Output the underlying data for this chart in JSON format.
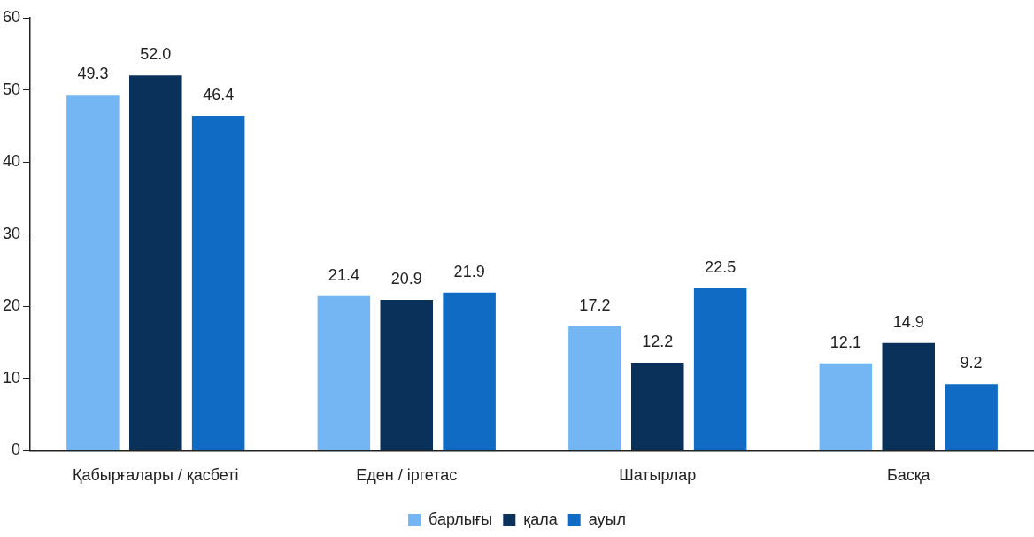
{
  "chart_data": {
    "type": "bar",
    "categories": [
      "Қабырғалары / қасбеті",
      "Еден / іргетас",
      "Шатырлар",
      "Басқа"
    ],
    "series": [
      {
        "name": "барлығы",
        "color": "#74b6f4",
        "values": [
          49.3,
          21.4,
          17.2,
          12.1
        ],
        "value_labels": [
          "49.3",
          "21.4",
          "17.2",
          "12.1"
        ]
      },
      {
        "name": "қала",
        "color": "#0a3159",
        "values": [
          52.0,
          20.9,
          12.2,
          14.9
        ],
        "value_labels": [
          "52.0",
          "20.9",
          "12.2",
          "14.9"
        ]
      },
      {
        "name": "ауыл",
        "color": "#0f6bc4",
        "values": [
          46.4,
          21.9,
          22.5,
          9.2
        ],
        "value_labels": [
          "46.4",
          "21.9",
          "22.5",
          "9.2"
        ]
      }
    ],
    "ylim": [
      0,
      60
    ],
    "yticks": [
      0,
      10,
      20,
      30,
      40,
      50,
      60
    ],
    "grid": false,
    "legend": "bottom"
  }
}
